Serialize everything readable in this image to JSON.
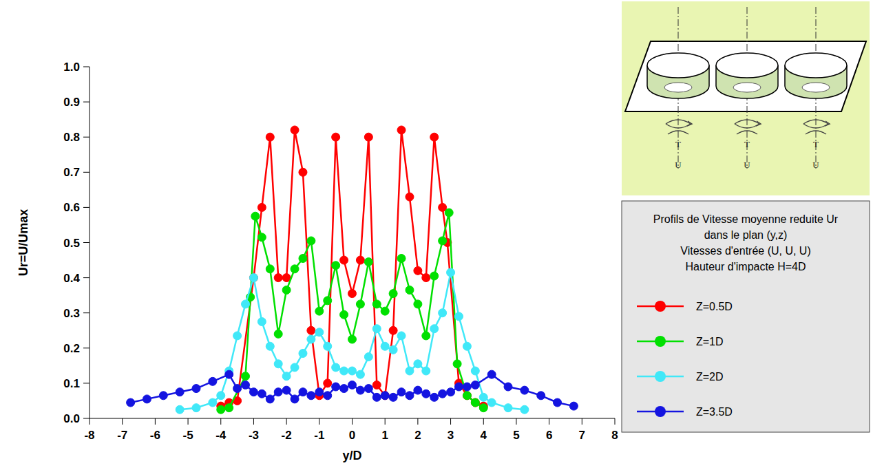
{
  "chart_data": {
    "type": "line",
    "title": "Profils de Vitesse moyenne reduite Ur",
    "subtitle": [
      "dans le plan (y,z)",
      "Vitesses d'entrée (U, U, U)",
      "Hauteur d'impacte H=4D"
    ],
    "x_label": "y/D",
    "y_label": "Ur=U/Umax",
    "annotations": [
      "T",
      "T",
      "T",
      "U",
      "U",
      "U"
    ],
    "xlim": [
      -8,
      8
    ],
    "ylim": [
      0,
      1
    ],
    "xticks": [
      -8,
      -7,
      -6,
      -5,
      -4,
      -3,
      -2,
      -1,
      0,
      1,
      2,
      3,
      4,
      5,
      6,
      7,
      8
    ],
    "yticks": [
      {
        "value": 0,
        "label": "0.0"
      },
      0.1,
      0.2,
      0.3,
      0.4,
      0.5,
      0.6,
      0.7,
      0.8,
      0.9,
      {
        "value": 1,
        "label": "1.0"
      }
    ],
    "grid": false,
    "legend": "right",
    "marker": "circle",
    "series": [
      {
        "name": "Z=0.5D",
        "color": "#ff0000",
        "x": [
          -4.0,
          -3.75,
          -3.5,
          -3.0,
          -2.75,
          -2.5,
          -2.25,
          -2.0,
          -1.75,
          -1.5,
          -1.25,
          -1.0,
          -0.75,
          -0.5,
          -0.25,
          0,
          0.25,
          0.5,
          0.75,
          1.0,
          1.25,
          1.5,
          1.75,
          2.0,
          2.25,
          2.5,
          2.75,
          2.9,
          3.25,
          3.5,
          3.75,
          4.0
        ],
        "values": [
          0.035,
          0.045,
          0.05,
          0.4,
          0.6,
          0.8,
          0.4,
          0.4,
          0.82,
          0.7,
          0.25,
          0.065,
          0.1,
          0.8,
          0.45,
          0.355,
          0.45,
          0.8,
          0.095,
          0.065,
          0.25,
          0.82,
          0.63,
          0.42,
          0.4,
          0.8,
          0.6,
          0.5,
          0.1,
          0.065,
          0.045,
          0.035
        ]
      },
      {
        "name": "Z=1D",
        "color": "#00e000",
        "x": [
          -4.0,
          -3.75,
          -3.25,
          -3.1,
          -2.95,
          -2.75,
          -2.5,
          -2.25,
          -2.0,
          -1.75,
          -1.5,
          -1.25,
          -1.0,
          -0.75,
          -0.5,
          -0.25,
          0,
          0.25,
          0.5,
          0.75,
          1.0,
          1.25,
          1.5,
          1.75,
          2.0,
          2.25,
          2.5,
          2.75,
          2.95,
          3.2,
          3.5,
          3.75,
          4.0
        ],
        "values": [
          0.025,
          0.03,
          0.12,
          0.345,
          0.575,
          0.515,
          0.425,
          0.24,
          0.365,
          0.425,
          0.455,
          0.505,
          0.305,
          0.335,
          0.435,
          0.295,
          0.225,
          0.325,
          0.445,
          0.325,
          0.305,
          0.355,
          0.455,
          0.365,
          0.325,
          0.235,
          0.405,
          0.505,
          0.585,
          0.155,
          0.065,
          0.045,
          0.03
        ]
      },
      {
        "name": "Z=2D",
        "color": "#40e8f8",
        "x": [
          -5.25,
          -4.75,
          -4.25,
          -4.0,
          -3.75,
          -3.5,
          -3.25,
          -3.0,
          -2.75,
          -2.5,
          -2.25,
          -2.0,
          -1.75,
          -1.5,
          -1.25,
          -1.0,
          -0.75,
          -0.5,
          -0.25,
          0,
          0.25,
          0.5,
          0.75,
          1.0,
          1.25,
          1.5,
          1.75,
          2.0,
          2.25,
          2.5,
          2.75,
          3.0,
          3.25,
          3.5,
          3.75,
          4.0,
          4.25,
          4.75,
          5.25
        ],
        "values": [
          0.025,
          0.03,
          0.045,
          0.065,
          0.135,
          0.235,
          0.325,
          0.4,
          0.275,
          0.205,
          0.155,
          0.12,
          0.145,
          0.185,
          0.225,
          0.245,
          0.205,
          0.145,
          0.135,
          0.135,
          0.125,
          0.175,
          0.255,
          0.205,
          0.195,
          0.235,
          0.135,
          0.155,
          0.135,
          0.255,
          0.3,
          0.415,
          0.29,
          0.205,
          0.135,
          0.06,
          0.045,
          0.03,
          0.025
        ]
      },
      {
        "name": "Z=3.5D",
        "color": "#1414e0",
        "x": [
          -6.75,
          -6.25,
          -5.75,
          -5.25,
          -4.75,
          -4.25,
          -3.75,
          -3.5,
          -3.25,
          -3.0,
          -2.75,
          -2.5,
          -2.25,
          -2.0,
          -1.75,
          -1.5,
          -1.25,
          -1.0,
          -0.75,
          -0.5,
          -0.25,
          0,
          0.25,
          0.5,
          0.75,
          1.0,
          1.25,
          1.5,
          1.75,
          2.0,
          2.25,
          2.5,
          2.75,
          3.0,
          3.25,
          3.5,
          3.75,
          4.25,
          4.75,
          5.25,
          5.75,
          6.25,
          6.75
        ],
        "values": [
          0.045,
          0.055,
          0.065,
          0.075,
          0.085,
          0.105,
          0.125,
          0.085,
          0.095,
          0.075,
          0.07,
          0.055,
          0.075,
          0.08,
          0.055,
          0.075,
          0.065,
          0.075,
          0.065,
          0.09,
          0.085,
          0.095,
          0.08,
          0.085,
          0.06,
          0.065,
          0.06,
          0.075,
          0.065,
          0.08,
          0.07,
          0.06,
          0.07,
          0.075,
          0.09,
          0.09,
          0.095,
          0.125,
          0.09,
          0.08,
          0.065,
          0.045,
          0.035
        ]
      }
    ]
  }
}
